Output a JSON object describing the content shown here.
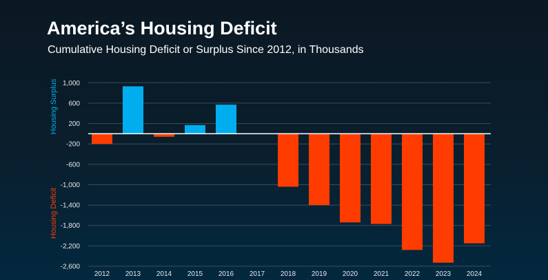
{
  "chart_data": {
    "type": "bar",
    "title": "America’s Housing Deficit",
    "subtitle": "Cumulative Housing Deficit or Surplus Since 2012, in Thousands",
    "categories": [
      "2012",
      "2013",
      "2014",
      "2015",
      "2016",
      "2017",
      "2018",
      "2019",
      "2020",
      "2021",
      "2022",
      "2023",
      "2024"
    ],
    "values": [
      -200,
      930,
      -60,
      170,
      570,
      0,
      -1040,
      -1400,
      -1740,
      -1770,
      -2280,
      -2530,
      -2150
    ],
    "ylabel_positive": "Housing Surplus",
    "ylabel_negative": "Housing Deficit",
    "ylim": [
      -2600,
      1000
    ],
    "yticks": [
      1000,
      600,
      200,
      -200,
      -600,
      -1000,
      -1400,
      -1800,
      -2200,
      -2600
    ],
    "ytick_labels": [
      "1,000",
      "600",
      "200",
      "-200",
      "-600",
      "-1,000",
      "-1,400",
      "-1,800",
      "-2,200",
      "-2,600"
    ],
    "grid": true,
    "colors": {
      "positive": "#00aeef",
      "negative": "#ff3c00",
      "zero_line": "#ffffff",
      "grid": "#3a4e5c",
      "positive_label": "#00aeef",
      "negative_label": "#ff3c00"
    }
  }
}
